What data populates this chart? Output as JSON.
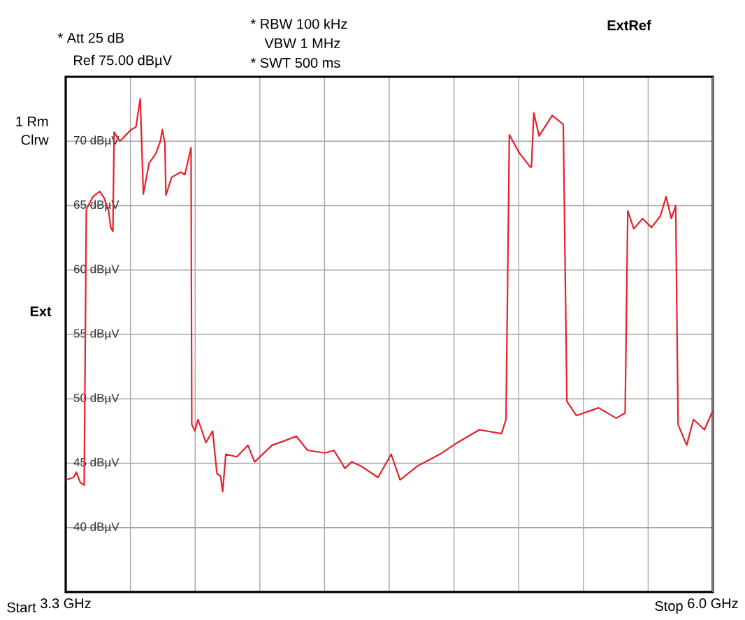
{
  "chart_data": {
    "type": "line",
    "annotations": [
      "* Att 25 dB",
      "Ref 75.00 dBµV",
      "* RBW 100 kHz",
      "VBW 1 MHz",
      "* SWT 500 ms",
      "ExtRef",
      "1 Rm",
      "Clrw",
      "Ext",
      "Start",
      "Stop"
    ],
    "xlim": [
      3.3,
      6.0
    ],
    "xticks": [
      {
        "value": 3.3,
        "label": "3.3 GHz"
      },
      {
        "value": 3.57,
        "label": null
      },
      {
        "value": 3.84,
        "label": null
      },
      {
        "value": 4.11,
        "label": null
      },
      {
        "value": 4.38,
        "label": null
      },
      {
        "value": 4.65,
        "label": null
      },
      {
        "value": 4.92,
        "label": null
      },
      {
        "value": 5.19,
        "label": null
      },
      {
        "value": 5.46,
        "label": null
      },
      {
        "value": 5.73,
        "label": null
      },
      {
        "value": 6.0,
        "label": "6.0 GHz"
      }
    ],
    "ylim": [
      35,
      75
    ],
    "yticks": [
      {
        "value": 40,
        "label": "40 dBµV"
      },
      {
        "value": 45,
        "label": "45 dBµV"
      },
      {
        "value": 50,
        "label": "50 dBµV"
      },
      {
        "value": 55,
        "label": "55 dBµV"
      },
      {
        "value": 60,
        "label": "60 dBµV"
      },
      {
        "value": 65,
        "label": "65 dBµV"
      },
      {
        "value": 70,
        "label": "70 dBµV"
      }
    ],
    "grid": true,
    "series": [
      {
        "color": "#e8202a",
        "x": [
          3.3,
          3.333,
          3.344,
          3.361,
          3.377,
          3.386,
          3.414,
          3.442,
          3.46,
          3.479,
          3.488,
          3.497,
          3.502,
          3.526,
          3.573,
          3.593,
          3.611,
          3.624,
          3.648,
          3.675,
          3.695,
          3.703,
          3.714,
          3.718,
          3.742,
          3.78,
          3.797,
          3.823,
          3.826,
          3.839,
          3.852,
          3.867,
          3.885,
          3.913,
          3.931,
          3.946,
          3.955,
          3.968,
          4.014,
          4.06,
          4.088,
          4.161,
          4.207,
          4.262,
          4.309,
          4.382,
          4.419,
          4.465,
          4.493,
          4.53,
          4.603,
          4.658,
          4.695,
          4.769,
          4.861,
          4.934,
          5.026,
          5.118,
          5.137,
          5.151,
          5.192,
          5.238,
          5.243,
          5.253,
          5.275,
          5.33,
          5.376,
          5.391,
          5.431,
          5.523,
          5.597,
          5.634,
          5.645,
          5.67,
          5.707,
          5.744,
          5.781,
          5.805,
          5.827,
          5.845,
          5.855,
          5.891,
          5.919,
          5.965,
          6.0
        ],
        "values": [
          43.7,
          43.9,
          44.3,
          43.5,
          43.3,
          64.7,
          65.7,
          66.1,
          65.6,
          64.6,
          63.3,
          63.0,
          70.7,
          70.0,
          70.9,
          71.1,
          73.3,
          65.9,
          68.3,
          69.0,
          70.0,
          70.9,
          69.8,
          65.8,
          67.2,
          67.6,
          67.4,
          69.5,
          48.0,
          47.5,
          48.4,
          47.6,
          46.6,
          47.5,
          44.2,
          44.0,
          42.8,
          45.7,
          45.5,
          46.4,
          45.1,
          46.4,
          46.7,
          47.1,
          46.0,
          45.8,
          46.0,
          44.6,
          45.1,
          44.8,
          43.9,
          45.7,
          43.7,
          44.8,
          45.7,
          46.6,
          47.6,
          47.3,
          48.4,
          70.5,
          69.1,
          68.0,
          68.0,
          72.2,
          70.4,
          72.0,
          71.3,
          49.8,
          48.7,
          49.3,
          48.5,
          48.9,
          64.6,
          63.2,
          64.0,
          63.3,
          64.2,
          65.7,
          64.0,
          65.0,
          48.0,
          46.4,
          48.4,
          47.6,
          49.1
        ]
      }
    ]
  }
}
